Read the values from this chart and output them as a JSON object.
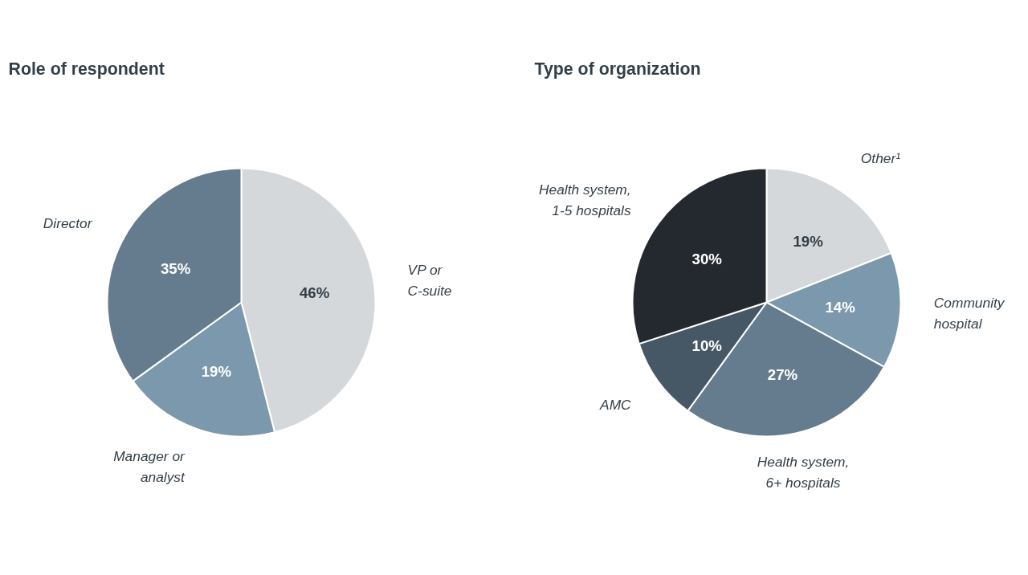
{
  "chart_data": [
    {
      "type": "pie",
      "title": "Role of respondent",
      "categories": [
        "VP or\nC-suite",
        "Manager or\nanalyst",
        "Director"
      ],
      "values": [
        46,
        19,
        35
      ],
      "value_labels": [
        "46%",
        "19%",
        "35%"
      ],
      "colors": [
        "#d5d8da",
        "#7b98ad",
        "#657b8e"
      ]
    },
    {
      "type": "pie",
      "title": "Type of organization",
      "categories": [
        "Other¹",
        "Community\nhospital",
        "Health system,\n6+ hospitals",
        "AMC",
        "Health system,\n1-5 hospitals"
      ],
      "values": [
        19,
        14,
        27,
        10,
        30
      ],
      "value_labels": [
        "19%",
        "14%",
        "27%",
        "10%",
        "30%"
      ],
      "colors": [
        "#d5d8da",
        "#7b98ad",
        "#657b8e",
        "#465766",
        "#24292f"
      ]
    }
  ]
}
